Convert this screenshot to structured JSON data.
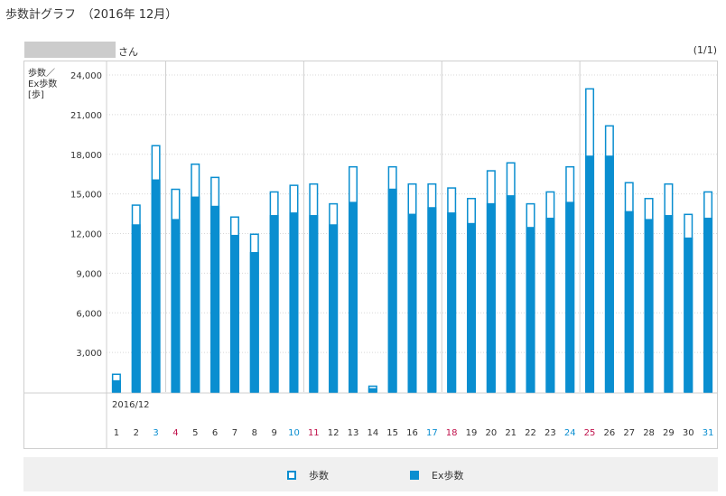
{
  "header": {
    "title": "歩数計グラフ　（2016年 12月）"
  },
  "user": {
    "name_suffix": "さん"
  },
  "pagination": {
    "label": "(1/1)"
  },
  "colors": {
    "bar": "#0a8ed0",
    "saturday": "#0a8ed0",
    "sunday": "#c0104a",
    "text": "#333333"
  },
  "legend": {
    "steps_label": "歩数",
    "ex_label": "Ex歩数"
  },
  "chart_data": {
    "type": "bar",
    "ylabel_lines": [
      "歩数／",
      "Ex歩数",
      "[歩]"
    ],
    "period_label": "2016/12",
    "ylim": [
      0,
      24000
    ],
    "yticks": [
      "3,000",
      "6,000",
      "9,000",
      "12,000",
      "15,000",
      "18,000",
      "21,000",
      "24,000"
    ],
    "ytick_values": [
      3000,
      6000,
      9000,
      12000,
      15000,
      18000,
      21000,
      24000
    ],
    "grid": true,
    "categories": [
      "1",
      "2",
      "3",
      "4",
      "5",
      "6",
      "7",
      "8",
      "9",
      "10",
      "11",
      "12",
      "13",
      "14",
      "15",
      "16",
      "17",
      "18",
      "19",
      "20",
      "21",
      "22",
      "23",
      "24",
      "25",
      "26",
      "27",
      "28",
      "29",
      "30",
      "31"
    ],
    "day_types": [
      "",
      "",
      "sat",
      "sun",
      "",
      "",
      "",
      "",
      "",
      "sat",
      "sun",
      "",
      "",
      "",
      "",
      "",
      "sat",
      "sun",
      "",
      "",
      "",
      "",
      "",
      "sat",
      "sun",
      "",
      "",
      "",
      "",
      "",
      "sat"
    ],
    "series": [
      {
        "name": "歩数",
        "values": [
          1400,
          14200,
          18700,
          15400,
          17300,
          16300,
          13300,
          12000,
          15200,
          15700,
          15800,
          14300,
          17100,
          500,
          17100,
          15800,
          15800,
          15500,
          14700,
          16800,
          17400,
          14300,
          15200,
          17100,
          23000,
          20200,
          15900,
          14700,
          15800,
          13500,
          15200
        ]
      },
      {
        "name": "Ex歩数",
        "values": [
          900,
          12700,
          16100,
          13100,
          14800,
          14100,
          11900,
          10600,
          13400,
          13600,
          13400,
          12700,
          14400,
          300,
          15400,
          13500,
          14000,
          13600,
          12800,
          14300,
          14900,
          12500,
          13200,
          14400,
          17900,
          17900,
          13700,
          13100,
          13400,
          11700,
          13200
        ]
      }
    ],
    "week_separators_after": [
      3,
      10,
      17,
      24
    ]
  }
}
